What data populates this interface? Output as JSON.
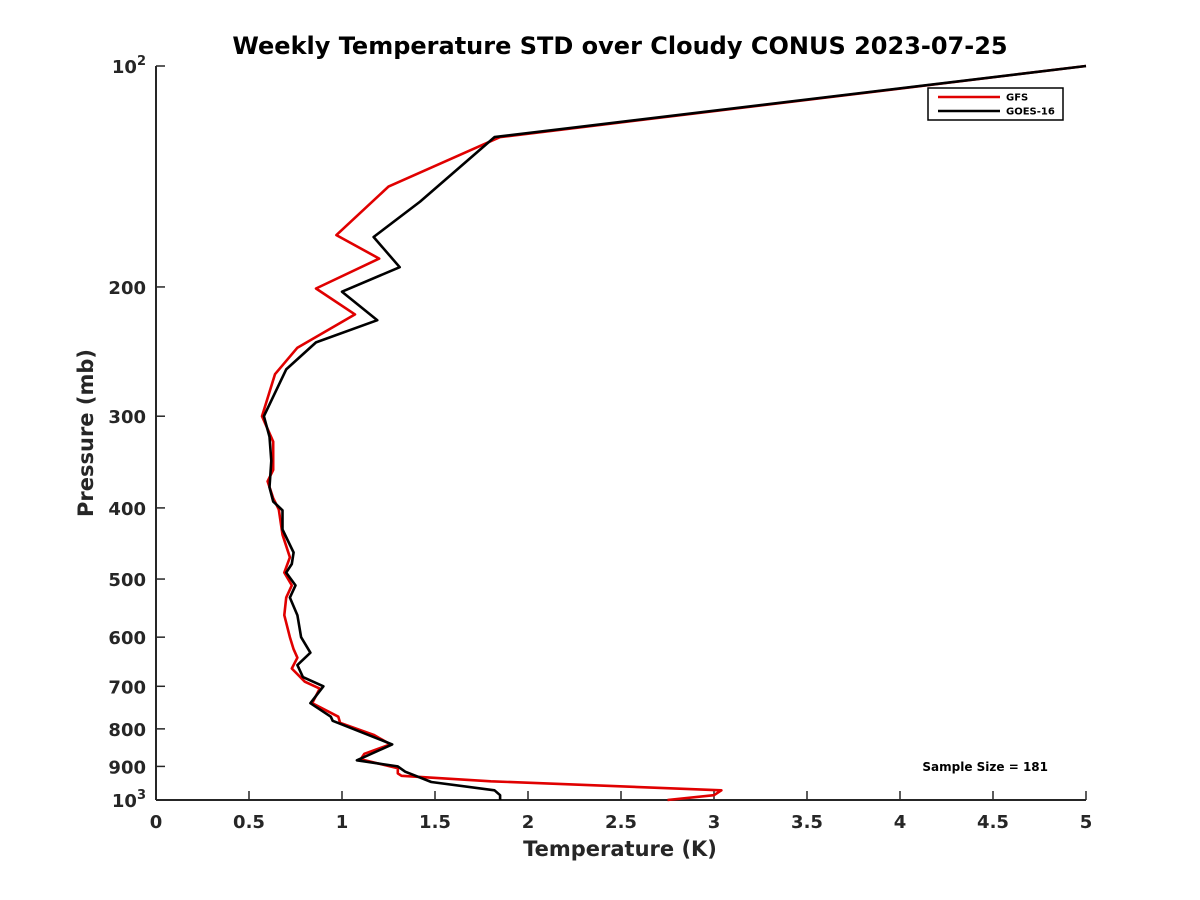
{
  "chart_data": {
    "type": "line",
    "title": "Weekly Temperature STD over Cloudy CONUS 2023-07-25",
    "xlabel": "Temperature (K)",
    "ylabel": "Pressure (mb)",
    "xlim": [
      0,
      5
    ],
    "ylim": [
      100,
      1000
    ],
    "y_scale": "log",
    "y_reversed": true,
    "grid": false,
    "legend_position": "top-right",
    "x_ticks": [
      "0",
      "0.5",
      "1",
      "1.5",
      "2",
      "2.5",
      "3",
      "3.5",
      "4",
      "4.5",
      "5"
    ],
    "x_tick_values": [
      0,
      0.5,
      1,
      1.5,
      2,
      2.5,
      3,
      3.5,
      4,
      4.5,
      5
    ],
    "y_ticks": [
      {
        "value": 100,
        "base": "10",
        "exp": "2"
      },
      {
        "value": 200,
        "label": "200"
      },
      {
        "value": 300,
        "label": "300"
      },
      {
        "value": 400,
        "label": "400"
      },
      {
        "value": 500,
        "label": "500"
      },
      {
        "value": 600,
        "label": "600"
      },
      {
        "value": 700,
        "label": "700"
      },
      {
        "value": 800,
        "label": "800"
      },
      {
        "value": 900,
        "label": "900"
      },
      {
        "value": 1000,
        "base": "10",
        "exp": "3"
      }
    ],
    "annotation": "Sample Size = 181",
    "series": [
      {
        "name": "GFS",
        "color": "#e00000",
        "points": [
          [
            5.0,
            100
          ],
          [
            1.85,
            125
          ],
          [
            1.25,
            146
          ],
          [
            0.97,
            170
          ],
          [
            1.2,
            183
          ],
          [
            0.86,
            201
          ],
          [
            1.07,
            218
          ],
          [
            0.76,
            242
          ],
          [
            0.64,
            263
          ],
          [
            0.57,
            300
          ],
          [
            0.63,
            325
          ],
          [
            0.63,
            355
          ],
          [
            0.6,
            368
          ],
          [
            0.63,
            388
          ],
          [
            0.66,
            402
          ],
          [
            0.68,
            435
          ],
          [
            0.72,
            467
          ],
          [
            0.69,
            490
          ],
          [
            0.73,
            510
          ],
          [
            0.7,
            530
          ],
          [
            0.69,
            560
          ],
          [
            0.72,
            600
          ],
          [
            0.74,
            623
          ],
          [
            0.76,
            640
          ],
          [
            0.73,
            662
          ],
          [
            0.8,
            690
          ],
          [
            0.88,
            705
          ],
          [
            0.84,
            738
          ],
          [
            0.98,
            770
          ],
          [
            0.99,
            785
          ],
          [
            1.17,
            815
          ],
          [
            1.26,
            840
          ],
          [
            1.12,
            865
          ],
          [
            1.1,
            880
          ],
          [
            1.3,
            905
          ],
          [
            1.3,
            920
          ],
          [
            1.32,
            927
          ],
          [
            1.8,
            943
          ],
          [
            3.04,
            970
          ],
          [
            3.0,
            985
          ],
          [
            2.75,
            1000
          ]
        ]
      },
      {
        "name": "GOES-16",
        "color": "#000000",
        "points": [
          [
            5.0,
            100
          ],
          [
            1.82,
            125
          ],
          [
            1.42,
            153
          ],
          [
            1.17,
            171
          ],
          [
            1.31,
            188
          ],
          [
            1.0,
            203
          ],
          [
            1.19,
            222
          ],
          [
            0.86,
            238
          ],
          [
            0.7,
            259
          ],
          [
            0.58,
            300
          ],
          [
            0.61,
            320
          ],
          [
            0.62,
            345
          ],
          [
            0.61,
            375
          ],
          [
            0.63,
            392
          ],
          [
            0.68,
            403
          ],
          [
            0.68,
            428
          ],
          [
            0.74,
            460
          ],
          [
            0.73,
            477
          ],
          [
            0.7,
            490
          ],
          [
            0.75,
            510
          ],
          [
            0.72,
            530
          ],
          [
            0.76,
            560
          ],
          [
            0.78,
            600
          ],
          [
            0.83,
            630
          ],
          [
            0.76,
            655
          ],
          [
            0.79,
            680
          ],
          [
            0.9,
            700
          ],
          [
            0.83,
            738
          ],
          [
            0.94,
            770
          ],
          [
            0.95,
            780
          ],
          [
            1.27,
            840
          ],
          [
            1.08,
            883
          ],
          [
            1.3,
            900
          ],
          [
            1.34,
            915
          ],
          [
            1.48,
            945
          ],
          [
            1.82,
            970
          ],
          [
            1.85,
            985
          ],
          [
            1.85,
            1000
          ]
        ]
      }
    ]
  }
}
